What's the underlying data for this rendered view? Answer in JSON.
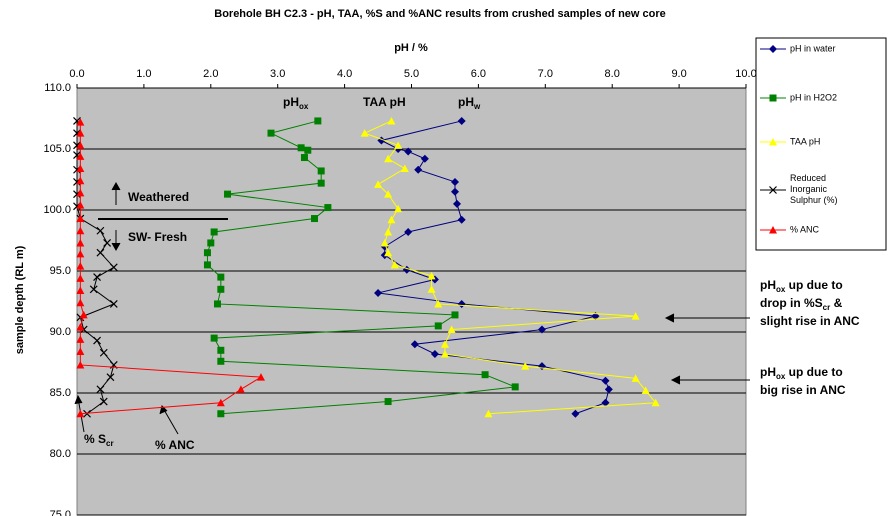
{
  "chart_data": {
    "type": "line",
    "title": "Borehole BH C2.3 - pH, TAA, %S and %ANC results from crushed samples of new core",
    "x_label": "pH / %",
    "y_label": "sample depth (RL m)",
    "xlim": [
      0,
      10
    ],
    "xticks": [
      {
        "value": 0,
        "label": "0.0"
      },
      {
        "value": 1,
        "label": "1.0"
      },
      {
        "value": 2,
        "label": "2.0"
      },
      {
        "value": 3,
        "label": "3.0"
      },
      {
        "value": 4,
        "label": "4.0"
      },
      {
        "value": 5,
        "label": "5.0"
      },
      {
        "value": 6,
        "label": "6.0"
      },
      {
        "value": 7,
        "label": "7.0"
      },
      {
        "value": 8,
        "label": "8.0"
      },
      {
        "value": 9,
        "label": "9.0"
      },
      {
        "value": 10,
        "label": "10.0"
      }
    ],
    "ylim": [
      75,
      110
    ],
    "yticks": [
      {
        "value": 75,
        "label": "75.0"
      },
      {
        "value": 80,
        "label": "80.0"
      },
      {
        "value": 85,
        "label": "85.0"
      },
      {
        "value": 90,
        "label": "90.0"
      },
      {
        "value": 95,
        "label": "95.0"
      },
      {
        "value": 100,
        "label": "100.0"
      },
      {
        "value": 105,
        "label": "105.0"
      },
      {
        "value": 110,
        "label": "110.0"
      }
    ],
    "grid": true,
    "legend": "right",
    "series": [
      {
        "name": "pH in water",
        "color": "#000080",
        "marker": "diamond",
        "x": [
          5.75,
          4.55,
          4.8,
          4.95,
          5.2,
          5.1,
          5.65,
          5.65,
          5.68,
          5.75,
          4.95,
          4.6,
          4.6,
          4.93,
          5.35,
          4.5,
          5.75,
          7.75,
          6.95,
          5.05,
          5.35,
          6.95,
          7.9,
          7.95,
          7.9,
          7.45
        ],
        "y": [
          107.3,
          105.7,
          105.0,
          104.8,
          104.2,
          103.3,
          102.3,
          101.5,
          100.5,
          99.2,
          98.2,
          97.0,
          96.3,
          95.1,
          94.3,
          93.2,
          92.3,
          91.3,
          90.2,
          89.0,
          88.2,
          87.2,
          86.0,
          85.3,
          84.2,
          83.3
        ]
      },
      {
        "name": "pH in H2O2",
        "color": "#008000",
        "marker": "square",
        "x": [
          3.6,
          2.9,
          3.35,
          3.45,
          3.4,
          3.65,
          3.65,
          2.25,
          3.75,
          3.55,
          2.05,
          2.0,
          1.95,
          1.95,
          2.15,
          2.15,
          2.1,
          5.65,
          5.4,
          2.05,
          2.15,
          2.15,
          6.1,
          6.55,
          4.65,
          2.15
        ],
        "y": [
          107.3,
          106.3,
          105.1,
          104.9,
          104.3,
          103.2,
          102.2,
          101.3,
          100.2,
          99.3,
          98.2,
          97.3,
          96.5,
          95.5,
          94.5,
          93.5,
          92.3,
          91.4,
          90.5,
          89.5,
          88.5,
          87.6,
          86.5,
          85.5,
          84.3,
          83.3
        ]
      },
      {
        "name": "TAA pH",
        "color": "#ffff00",
        "marker": "triangle",
        "x": [
          4.7,
          4.3,
          4.8,
          4.65,
          4.9,
          4.5,
          4.65,
          4.8,
          4.7,
          4.65,
          4.6,
          4.65,
          4.75,
          5.3,
          5.3,
          5.4,
          8.35,
          5.6,
          5.5,
          5.5,
          6.7,
          8.35,
          8.5,
          8.65,
          6.15
        ],
        "y": [
          107.3,
          106.3,
          105.3,
          104.2,
          103.4,
          102.1,
          101.3,
          100.1,
          99.2,
          98.2,
          97.3,
          96.5,
          95.5,
          94.6,
          93.5,
          92.3,
          91.3,
          90.2,
          89.0,
          88.2,
          87.2,
          86.2,
          85.2,
          84.2,
          83.3
        ]
      },
      {
        "name": "Reduced Inorganic Sulphur (%)",
        "color": "#000000",
        "marker": "x",
        "x": [
          0.0,
          0.0,
          0.0,
          0.0,
          0.0,
          0.0,
          0.0,
          0.0,
          0.05,
          0.35,
          0.45,
          0.35,
          0.55,
          0.3,
          0.25,
          0.55,
          0.05,
          0.1,
          0.3,
          0.4,
          0.55,
          0.5,
          0.35,
          0.4,
          0.15
        ],
        "y": [
          107.3,
          106.3,
          105.3,
          104.5,
          103.3,
          102.3,
          101.3,
          100.3,
          99.3,
          98.3,
          97.3,
          96.5,
          95.3,
          94.5,
          93.5,
          92.3,
          91.2,
          90.2,
          89.3,
          88.3,
          87.3,
          86.3,
          85.3,
          84.3,
          83.3
        ]
      },
      {
        "name": "% ANC",
        "color": "#ff0000",
        "marker": "triangle",
        "x": [
          0.05,
          0.05,
          0.05,
          0.05,
          0.05,
          0.05,
          0.05,
          0.05,
          0.05,
          0.05,
          0.05,
          0.05,
          0.05,
          0.05,
          0.05,
          0.05,
          0.1,
          0.05,
          0.05,
          0.05,
          0.05,
          2.75,
          2.45,
          2.15,
          0.05
        ],
        "y": [
          107.2,
          106.3,
          105.3,
          104.4,
          103.4,
          102.4,
          101.4,
          100.4,
          99.3,
          98.3,
          97.3,
          96.4,
          95.4,
          94.4,
          93.4,
          92.4,
          91.4,
          90.4,
          89.4,
          88.4,
          87.3,
          86.3,
          85.3,
          84.2,
          83.3
        ]
      }
    ],
    "annotations": [
      [
        [
          {
            "text": "pH"
          },
          {
            "sub": "ox"
          }
        ]
      ],
      [
        [
          {
            "text": "TAA pH"
          }
        ]
      ],
      [
        [
          {
            "text": "pH"
          },
          {
            "sub": "w"
          }
        ]
      ],
      [
        [
          {
            "text": "Weathered"
          }
        ]
      ],
      [
        [
          {
            "text": "SW- Fresh"
          }
        ]
      ],
      [
        [
          {
            "text": "% S"
          },
          {
            "sub": "cr"
          }
        ]
      ],
      [
        [
          {
            "text": "% ANC"
          }
        ]
      ],
      [
        [
          {
            "text": "pH"
          },
          {
            "sub": "ox"
          },
          {
            "text": " up due to"
          }
        ],
        [
          {
            "text": "drop in %S"
          },
          {
            "sub": "cr"
          },
          {
            "text": " &"
          }
        ],
        [
          {
            "text": "slight rise in ANC"
          }
        ]
      ],
      [
        [
          {
            "text": "pH"
          },
          {
            "sub": "ox"
          },
          {
            "text": " up due to"
          }
        ],
        [
          {
            "text": "big rise in ANC"
          }
        ]
      ]
    ]
  }
}
